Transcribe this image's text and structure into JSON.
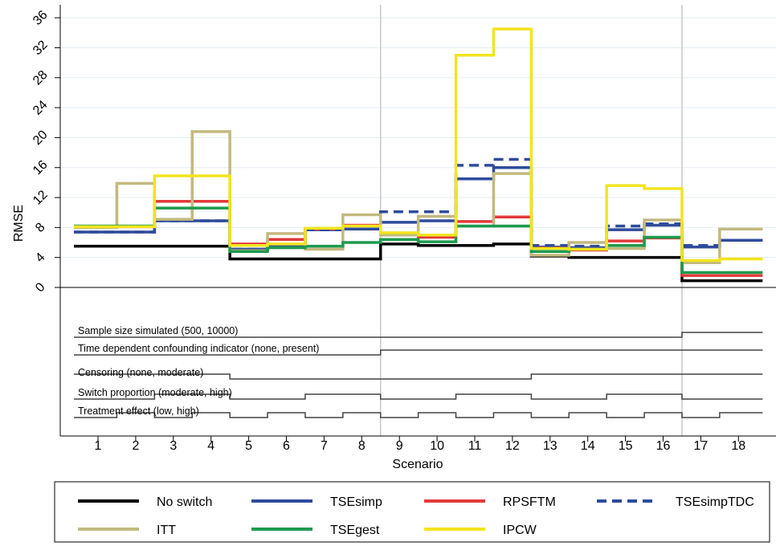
{
  "chart_data": {
    "type": "line",
    "title": "",
    "xlabel": "Scenario",
    "ylabel": "RMSE",
    "ylim": [
      0,
      37
    ],
    "yticks": [
      0,
      4,
      8,
      12,
      16,
      20,
      24,
      28,
      32,
      36
    ],
    "categories": [
      "1",
      "2",
      "3",
      "4",
      "5",
      "6",
      "7",
      "8",
      "9",
      "10",
      "11",
      "12",
      "13",
      "14",
      "15",
      "16",
      "17",
      "18"
    ],
    "grid": true,
    "legend_position": "bottom",
    "series": [
      {
        "name": "No switch",
        "color": "#000000",
        "dash": false,
        "values": [
          5.5,
          5.5,
          5.5,
          5.5,
          3.8,
          3.8,
          3.8,
          3.8,
          5.8,
          5.6,
          5.6,
          5.8,
          4.2,
          4.0,
          4.0,
          4.0,
          0.9,
          0.9
        ]
      },
      {
        "name": "TSEsimp",
        "color": "#2F4B9A",
        "dash": false,
        "values": [
          7.4,
          7.4,
          8.9,
          8.9,
          5.1,
          5.5,
          7.7,
          7.8,
          8.7,
          8.9,
          14.5,
          16.0,
          5.4,
          5.3,
          7.7,
          8.3,
          5.4,
          6.3
        ]
      },
      {
        "name": "RPSFTM",
        "color": "#E23A3A",
        "dash": false,
        "values": [
          8.1,
          8.1,
          11.5,
          11.5,
          5.8,
          6.4,
          7.8,
          8.3,
          7.0,
          6.7,
          8.8,
          9.4,
          5.3,
          5.0,
          6.2,
          6.6,
          1.6,
          1.6
        ]
      },
      {
        "name": "TSEsimpTDC",
        "color": "#2F4B9A",
        "dash": true,
        "values": [
          7.4,
          7.4,
          8.9,
          8.9,
          5.1,
          5.5,
          7.7,
          7.8,
          10.1,
          10.1,
          16.3,
          17.1,
          5.6,
          5.5,
          8.2,
          8.5,
          5.6,
          6.3
        ]
      },
      {
        "name": "ITT",
        "color": "#C2B97E",
        "dash": false,
        "values": [
          8.0,
          13.9,
          9.1,
          20.8,
          4.9,
          7.2,
          5.1,
          9.7,
          7.0,
          9.5,
          8.2,
          15.2,
          4.3,
          6.0,
          5.2,
          9.0,
          3.3,
          7.8
        ]
      },
      {
        "name": "TSEgest",
        "color": "#1E9A4E",
        "dash": false,
        "values": [
          8.2,
          8.2,
          10.6,
          10.6,
          4.8,
          5.3,
          5.5,
          6.0,
          6.4,
          6.1,
          8.2,
          8.2,
          4.8,
          5.1,
          5.6,
          6.7,
          2.0,
          2.0
        ]
      },
      {
        "name": "IPCW",
        "color": "#F2E420",
        "dash": false,
        "values": [
          8.1,
          8.1,
          14.9,
          14.9,
          5.6,
          5.8,
          7.9,
          8.2,
          7.3,
          7.0,
          31.0,
          34.5,
          5.2,
          5.1,
          13.6,
          13.2,
          3.6,
          3.8
        ]
      }
    ],
    "indicators": [
      {
        "label": "Sample size simulated (500, 10000)",
        "levels": [
          0,
          0,
          0,
          0,
          0,
          0,
          0,
          0,
          0,
          0,
          0,
          0,
          0,
          0,
          0,
          0,
          1,
          1
        ]
      },
      {
        "label": "Time dependent confounding indicator (none, present)",
        "levels": [
          0,
          0,
          0,
          0,
          0,
          0,
          0,
          0,
          1,
          1,
          1,
          1,
          1,
          1,
          1,
          1,
          1,
          1
        ]
      },
      {
        "label": "Censoring (none, moderate)",
        "levels": [
          1,
          1,
          1,
          1,
          0,
          0,
          0,
          0,
          0,
          0,
          0,
          0,
          1,
          1,
          1,
          1,
          1,
          1
        ]
      },
      {
        "label": "Switch proportion (moderate, high)",
        "levels": [
          0,
          0,
          1,
          1,
          0,
          0,
          1,
          1,
          0,
          0,
          1,
          1,
          0,
          0,
          1,
          1,
          0,
          0
        ]
      },
      {
        "label": "Treatment effect (low, high)",
        "levels": [
          0,
          1,
          0,
          1,
          0,
          1,
          0,
          1,
          0,
          1,
          0,
          1,
          0,
          1,
          0,
          1,
          0,
          1
        ]
      }
    ],
    "vertical_reference_lines_between": [
      [
        8,
        9
      ],
      [
        16,
        17
      ]
    ]
  }
}
